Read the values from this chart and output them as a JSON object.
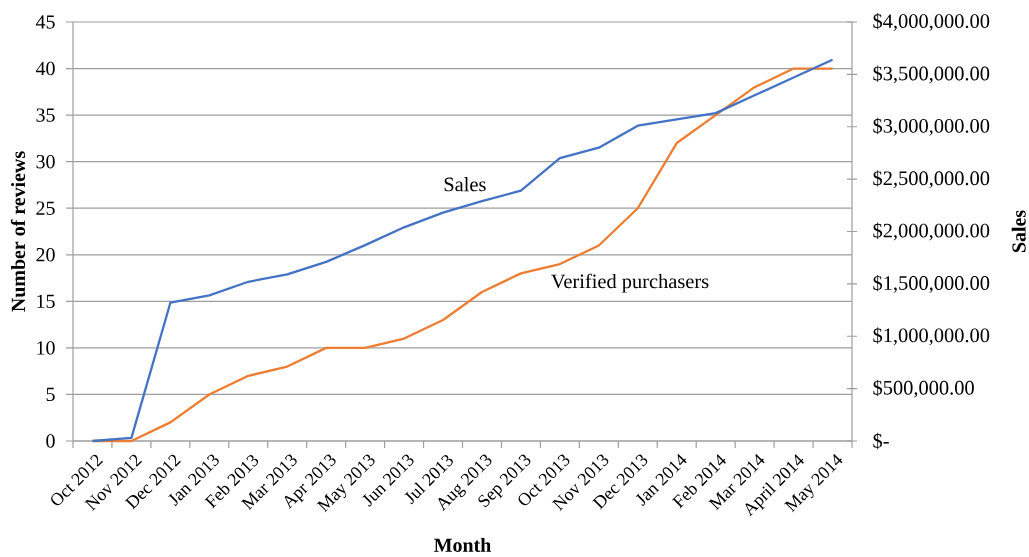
{
  "chart_data": {
    "type": "line",
    "xlabel": "Month",
    "ylabel": "Number of reviews",
    "y2label": "Sales",
    "categories": [
      "Oct 2012",
      "Nov 2012",
      "Dec 2012",
      "Jan 2013",
      "Feb 2013",
      "Mar 2013",
      "Apr 2013",
      "May 2013",
      "Jun 2013",
      "Jul 2013",
      "Aug 2013",
      "Sep 2013",
      "Oct 2013",
      "Nov 2013",
      "Dec 2013",
      "Jan 2014",
      "Feb 2014",
      "Mar 2014",
      "April 2014",
      "May 2014"
    ],
    "series": [
      {
        "name": "Sales",
        "color": "#4472c4",
        "axis": "y2",
        "values": [
          0,
          30000,
          1320000,
          1390000,
          1520000,
          1590000,
          1710000,
          1870000,
          2040000,
          2180000,
          2290000,
          2390000,
          2700000,
          2800000,
          3010000,
          3070000,
          3130000,
          3300000,
          3470000,
          3640000
        ]
      },
      {
        "name": "Verified purchasers",
        "color": "#ed7d31",
        "values": [
          0,
          0,
          2,
          5,
          7,
          8,
          10,
          10,
          11,
          13,
          16,
          18,
          19,
          21,
          25,
          32,
          35,
          38,
          40,
          40
        ]
      }
    ],
    "ylim": [
      0,
      45
    ],
    "yticks": [
      0,
      5,
      10,
      15,
      20,
      25,
      30,
      35,
      40,
      45
    ],
    "y2lim": [
      0,
      4000000
    ],
    "y2ticks": [
      {
        "value": 0,
        "label": "$-"
      },
      {
        "value": 500000,
        "label": "$500,000.00"
      },
      {
        "value": 1000000,
        "label": "$1,000,000.00"
      },
      {
        "value": 1500000,
        "label": "$1,500,000.00"
      },
      {
        "value": 2000000,
        "label": "$2,000,000.00"
      },
      {
        "value": 2500000,
        "label": "$2,500,000.00"
      },
      {
        "value": 3000000,
        "label": "$3,000,000.00"
      },
      {
        "value": 3500000,
        "label": "$3,500,000.00"
      },
      {
        "value": 4000000,
        "label": "$4,000,000.00"
      }
    ],
    "grid": "y",
    "marker": "none",
    "line_style": "solid"
  }
}
